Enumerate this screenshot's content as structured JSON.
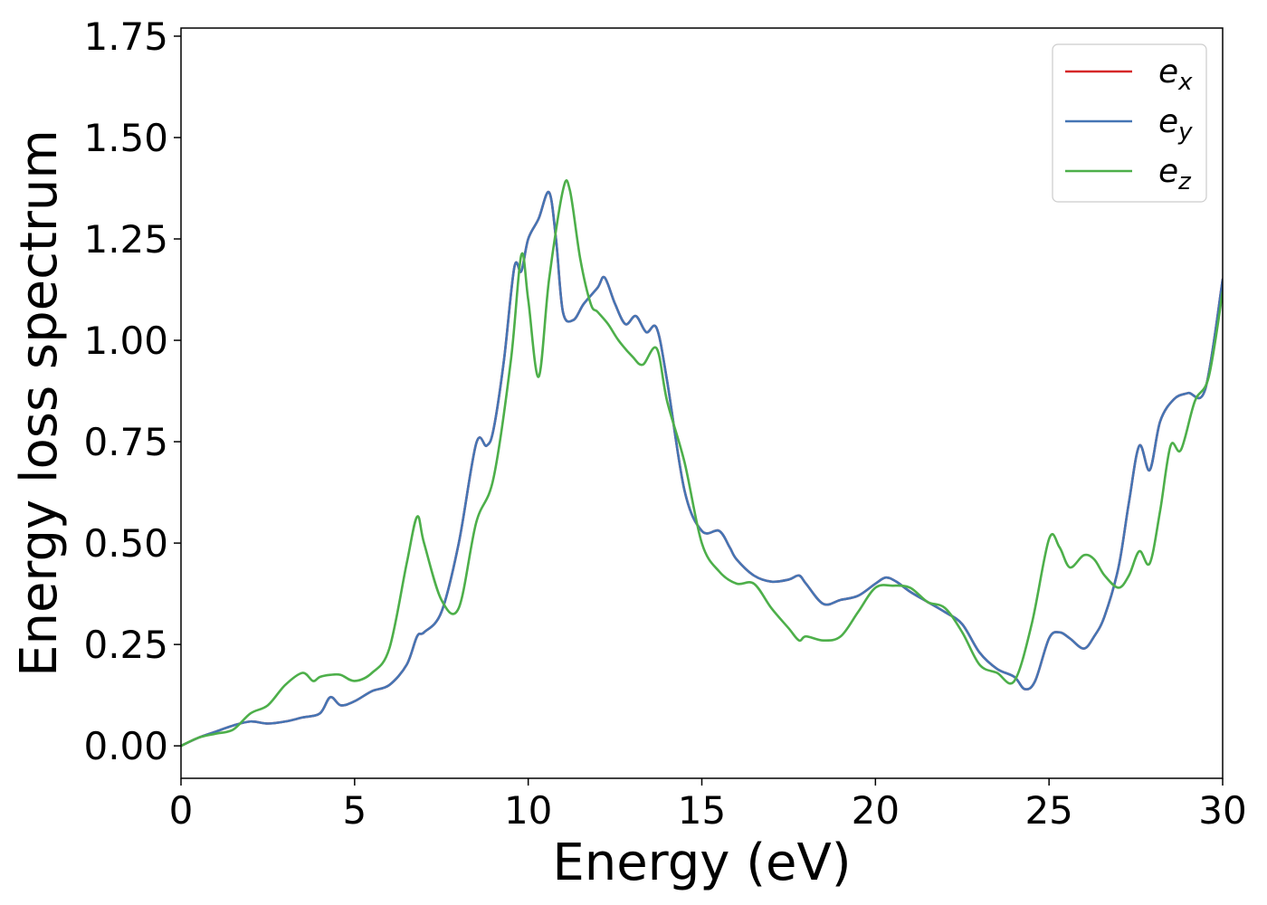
{
  "chart_data": {
    "type": "line",
    "title": "",
    "xlabel": "Energy (eV)",
    "ylabel": "Energy loss spectrum",
    "xlim": [
      0,
      30
    ],
    "ylim": [
      -0.08,
      1.77
    ],
    "xticks": [
      0,
      5,
      10,
      15,
      20,
      25,
      30
    ],
    "xtick_labels": [
      "0",
      "5",
      "10",
      "15",
      "20",
      "25",
      "30"
    ],
    "yticks": [
      0.0,
      0.25,
      0.5,
      0.75,
      1.0,
      1.25,
      1.5,
      1.75
    ],
    "ytick_labels": [
      "0.00",
      "0.25",
      "0.50",
      "0.75",
      "1.00",
      "1.25",
      "1.50",
      "1.75"
    ],
    "grid": false,
    "legend_position": "top-right",
    "series": [
      {
        "name": "e_x",
        "legend_base": "e",
        "legend_sub": "x",
        "color": "#d62728",
        "x": [
          0,
          0.5,
          1,
          1.5,
          2,
          2.5,
          3,
          3.5,
          4,
          4.3,
          4.6,
          5,
          5.5,
          6,
          6.5,
          6.8,
          7,
          7.5,
          8,
          8.5,
          8.8,
          9,
          9.3,
          9.6,
          9.8,
          10,
          10.3,
          10.6,
          10.8,
          11,
          11.3,
          11.6,
          12,
          12.2,
          12.5,
          12.8,
          13.1,
          13.4,
          13.7,
          14,
          14.5,
          15,
          15.5,
          15.8,
          16,
          16.5,
          17,
          17.5,
          17.8,
          18,
          18.5,
          19,
          19.5,
          20,
          20.3,
          20.6,
          21,
          21.5,
          22,
          22.5,
          23,
          23.5,
          24,
          24.3,
          24.6,
          25,
          25.3,
          25.6,
          26,
          26.3,
          26.6,
          27,
          27.3,
          27.6,
          27.9,
          28.2,
          28.6,
          29,
          29.5,
          30
        ],
        "y": [
          0.0,
          0.02,
          0.035,
          0.05,
          0.06,
          0.055,
          0.06,
          0.07,
          0.08,
          0.12,
          0.1,
          0.11,
          0.135,
          0.15,
          0.2,
          0.27,
          0.28,
          0.33,
          0.5,
          0.745,
          0.74,
          0.78,
          0.95,
          1.18,
          1.17,
          1.25,
          1.3,
          1.365,
          1.25,
          1.07,
          1.05,
          1.09,
          1.13,
          1.155,
          1.09,
          1.04,
          1.06,
          1.02,
          1.03,
          0.9,
          0.63,
          0.53,
          0.53,
          0.49,
          0.46,
          0.42,
          0.405,
          0.41,
          0.42,
          0.4,
          0.35,
          0.36,
          0.37,
          0.4,
          0.415,
          0.405,
          0.38,
          0.355,
          0.33,
          0.3,
          0.23,
          0.19,
          0.17,
          0.14,
          0.16,
          0.265,
          0.28,
          0.265,
          0.24,
          0.27,
          0.32,
          0.44,
          0.6,
          0.74,
          0.68,
          0.8,
          0.855,
          0.87,
          0.88,
          1.15
        ]
      },
      {
        "name": "e_y",
        "legend_base": "e",
        "legend_sub": "y",
        "color": "#4575b4",
        "x": [
          0,
          0.5,
          1,
          1.5,
          2,
          2.5,
          3,
          3.5,
          4,
          4.3,
          4.6,
          5,
          5.5,
          6,
          6.5,
          6.8,
          7,
          7.5,
          8,
          8.5,
          8.8,
          9,
          9.3,
          9.6,
          9.8,
          10,
          10.3,
          10.6,
          10.8,
          11,
          11.3,
          11.6,
          12,
          12.2,
          12.5,
          12.8,
          13.1,
          13.4,
          13.7,
          14,
          14.5,
          15,
          15.5,
          15.8,
          16,
          16.5,
          17,
          17.5,
          17.8,
          18,
          18.5,
          19,
          19.5,
          20,
          20.3,
          20.6,
          21,
          21.5,
          22,
          22.5,
          23,
          23.5,
          24,
          24.3,
          24.6,
          25,
          25.3,
          25.6,
          26,
          26.3,
          26.6,
          27,
          27.3,
          27.6,
          27.9,
          28.2,
          28.6,
          29,
          29.5,
          30
        ],
        "y": [
          0.0,
          0.02,
          0.035,
          0.05,
          0.06,
          0.055,
          0.06,
          0.07,
          0.08,
          0.12,
          0.1,
          0.11,
          0.135,
          0.15,
          0.2,
          0.27,
          0.28,
          0.33,
          0.5,
          0.745,
          0.74,
          0.78,
          0.95,
          1.18,
          1.17,
          1.25,
          1.3,
          1.365,
          1.25,
          1.07,
          1.05,
          1.09,
          1.13,
          1.155,
          1.09,
          1.04,
          1.06,
          1.02,
          1.03,
          0.9,
          0.63,
          0.53,
          0.53,
          0.49,
          0.46,
          0.42,
          0.405,
          0.41,
          0.42,
          0.4,
          0.35,
          0.36,
          0.37,
          0.4,
          0.415,
          0.405,
          0.38,
          0.355,
          0.33,
          0.3,
          0.23,
          0.19,
          0.17,
          0.14,
          0.16,
          0.265,
          0.28,
          0.265,
          0.24,
          0.27,
          0.32,
          0.44,
          0.6,
          0.74,
          0.68,
          0.8,
          0.855,
          0.87,
          0.88,
          1.15
        ]
      },
      {
        "name": "e_z",
        "legend_base": "e",
        "legend_sub": "z",
        "color": "#4daf4a",
        "x": [
          0,
          0.5,
          1,
          1.5,
          2,
          2.5,
          3,
          3.5,
          3.8,
          4,
          4.3,
          4.6,
          5,
          5.5,
          6,
          6.5,
          6.8,
          7,
          7.5,
          8,
          8.5,
          9,
          9.5,
          9.8,
          10,
          10.3,
          10.6,
          11,
          11.2,
          11.5,
          11.8,
          12,
          12.3,
          12.6,
          13,
          13.3,
          13.7,
          14,
          14.5,
          15,
          15.5,
          16,
          16.5,
          17,
          17.5,
          17.8,
          18,
          18.5,
          19,
          19.5,
          20,
          20.5,
          21,
          21.5,
          22,
          22.5,
          23,
          23.5,
          24,
          24.5,
          25,
          25.3,
          25.6,
          26,
          26.3,
          26.6,
          27,
          27.3,
          27.6,
          27.9,
          28.2,
          28.5,
          28.8,
          29.2,
          29.6,
          30
        ],
        "y": [
          0.0,
          0.02,
          0.03,
          0.04,
          0.08,
          0.1,
          0.15,
          0.18,
          0.16,
          0.17,
          0.175,
          0.175,
          0.16,
          0.18,
          0.24,
          0.45,
          0.565,
          0.5,
          0.36,
          0.34,
          0.55,
          0.66,
          0.95,
          1.21,
          1.1,
          0.91,
          1.15,
          1.37,
          1.37,
          1.2,
          1.09,
          1.07,
          1.04,
          1.0,
          0.96,
          0.94,
          0.98,
          0.85,
          0.7,
          0.5,
          0.43,
          0.4,
          0.4,
          0.34,
          0.29,
          0.26,
          0.27,
          0.26,
          0.27,
          0.33,
          0.39,
          0.395,
          0.39,
          0.355,
          0.34,
          0.28,
          0.2,
          0.18,
          0.16,
          0.3,
          0.51,
          0.49,
          0.44,
          0.47,
          0.46,
          0.42,
          0.39,
          0.42,
          0.48,
          0.45,
          0.58,
          0.74,
          0.73,
          0.85,
          0.91,
          1.12
        ]
      }
    ]
  }
}
